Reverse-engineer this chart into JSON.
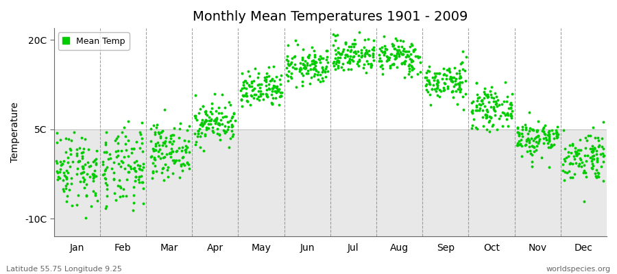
{
  "title": "Monthly Mean Temperatures 1901 - 2009",
  "ylabel": "Temperature",
  "dot_color": "#00cc00",
  "background_color": "#ffffff",
  "plot_bg_color": "#ffffff",
  "shaded_bg_color": "#e8e8e8",
  "ylim": [
    -13,
    22
  ],
  "yticks": [
    -10,
    5,
    20
  ],
  "ytick_labels": [
    "-10C",
    "5C",
    "20C"
  ],
  "shade_below": 5,
  "months": [
    "Jan",
    "Feb",
    "Mar",
    "Apr",
    "May",
    "Jun",
    "Jul",
    "Aug",
    "Sep",
    "Oct",
    "Nov",
    "Dec"
  ],
  "month_means": [
    -1.5,
    -1.8,
    1.5,
    6.2,
    11.5,
    15.5,
    17.5,
    17.2,
    13.0,
    8.5,
    3.5,
    0.5
  ],
  "month_stds": [
    3.2,
    3.4,
    2.2,
    1.8,
    1.6,
    1.5,
    1.5,
    1.5,
    1.6,
    1.6,
    1.6,
    2.2
  ],
  "n_years": 109,
  "seed": 42,
  "legend_label": "Mean Temp",
  "subtitle_left": "Latitude 55.75 Longitude 9.25",
  "subtitle_right": "worldspecies.org",
  "marker_size": 8,
  "dot_alpha": 1.0,
  "title_fontsize": 14,
  "axis_fontsize": 10,
  "subtitle_fontsize": 8
}
